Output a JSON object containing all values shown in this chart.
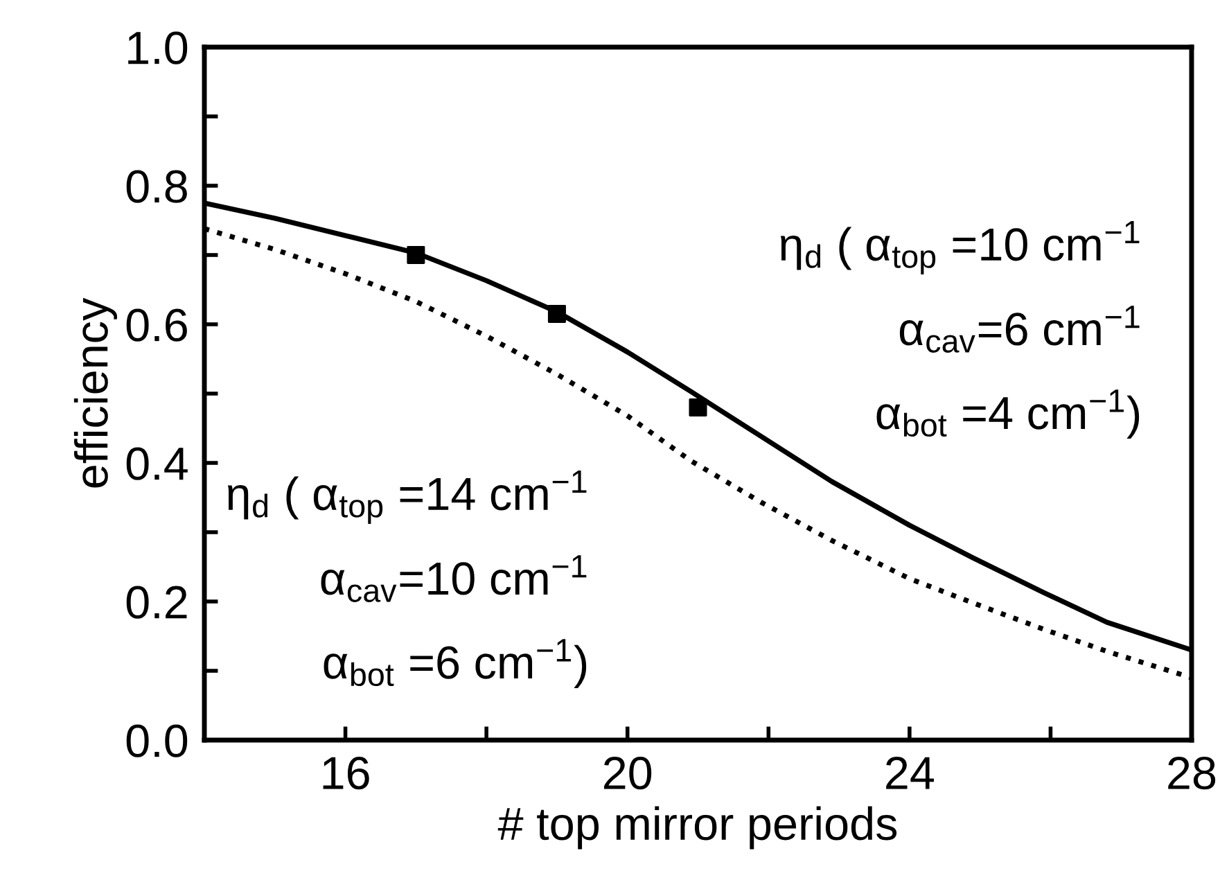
{
  "chart_data": {
    "type": "line",
    "xlabel": "# top mirror periods",
    "ylabel": "efficiency",
    "xlim": [
      14,
      28
    ],
    "ylim": [
      0,
      1
    ],
    "xticks": [
      16,
      {
        "value": 18,
        "label": null
      },
      20,
      {
        "value": 22,
        "label": null
      },
      24,
      {
        "value": 26,
        "label": null
      },
      28
    ],
    "yticks": [
      {
        "value": 0,
        "label": "0.0"
      },
      {
        "value": 0.1,
        "label": null
      },
      {
        "value": 0.2,
        "label": "0.2"
      },
      {
        "value": 0.3,
        "label": null
      },
      {
        "value": 0.4,
        "label": "0.4"
      },
      {
        "value": 0.5,
        "label": null
      },
      {
        "value": 0.6,
        "label": "0.6"
      },
      {
        "value": 0.7,
        "label": null
      },
      {
        "value": 0.8,
        "label": "0.8"
      },
      {
        "value": 0.9,
        "label": null
      },
      {
        "value": 1,
        "label": "1.0"
      }
    ],
    "grid": false,
    "series": [
      {
        "line_style": "solid",
        "color": "#000000",
        "x": [
          14,
          15,
          16,
          17,
          18,
          19,
          20,
          20.9,
          21.9,
          22.9,
          24,
          24.9,
          25.9,
          26.8,
          28
        ],
        "values": [
          0.775,
          0.753,
          0.728,
          0.703,
          0.663,
          0.618,
          0.56,
          0.503,
          0.438,
          0.373,
          0.31,
          0.263,
          0.213,
          0.17,
          0.13
        ]
      },
      {
        "line_style": "dotted",
        "color": "#000000",
        "x": [
          14,
          15,
          16,
          17,
          18,
          19,
          20,
          20.9,
          21.9,
          22.9,
          24,
          24.9,
          25.9,
          26.8,
          28
        ],
        "values": [
          0.738,
          0.708,
          0.673,
          0.633,
          0.583,
          0.528,
          0.468,
          0.403,
          0.343,
          0.288,
          0.233,
          0.198,
          0.16,
          0.128,
          0.09
        ]
      },
      {
        "type": "scatter",
        "marker": "square",
        "color": "#000000",
        "x": [
          17,
          19,
          21
        ],
        "values": [
          0.7,
          0.615,
          0.48
        ]
      }
    ],
    "annotations": [
      "η$_{d}$ ( α$_{top}$ =10 cm$^{−1}$",
      "α$_{cav}$=6 cm$^{−1}$",
      "α$_{bot}$ =4 cm$^{−1}$)",
      "η$_{d}$ ( α$_{top}$ =14 cm$^{−1}$",
      "α$_{cav}$=10 cm$^{−1}$",
      "α$_{bot}$ =6 cm$^{−1}$)"
    ]
  }
}
